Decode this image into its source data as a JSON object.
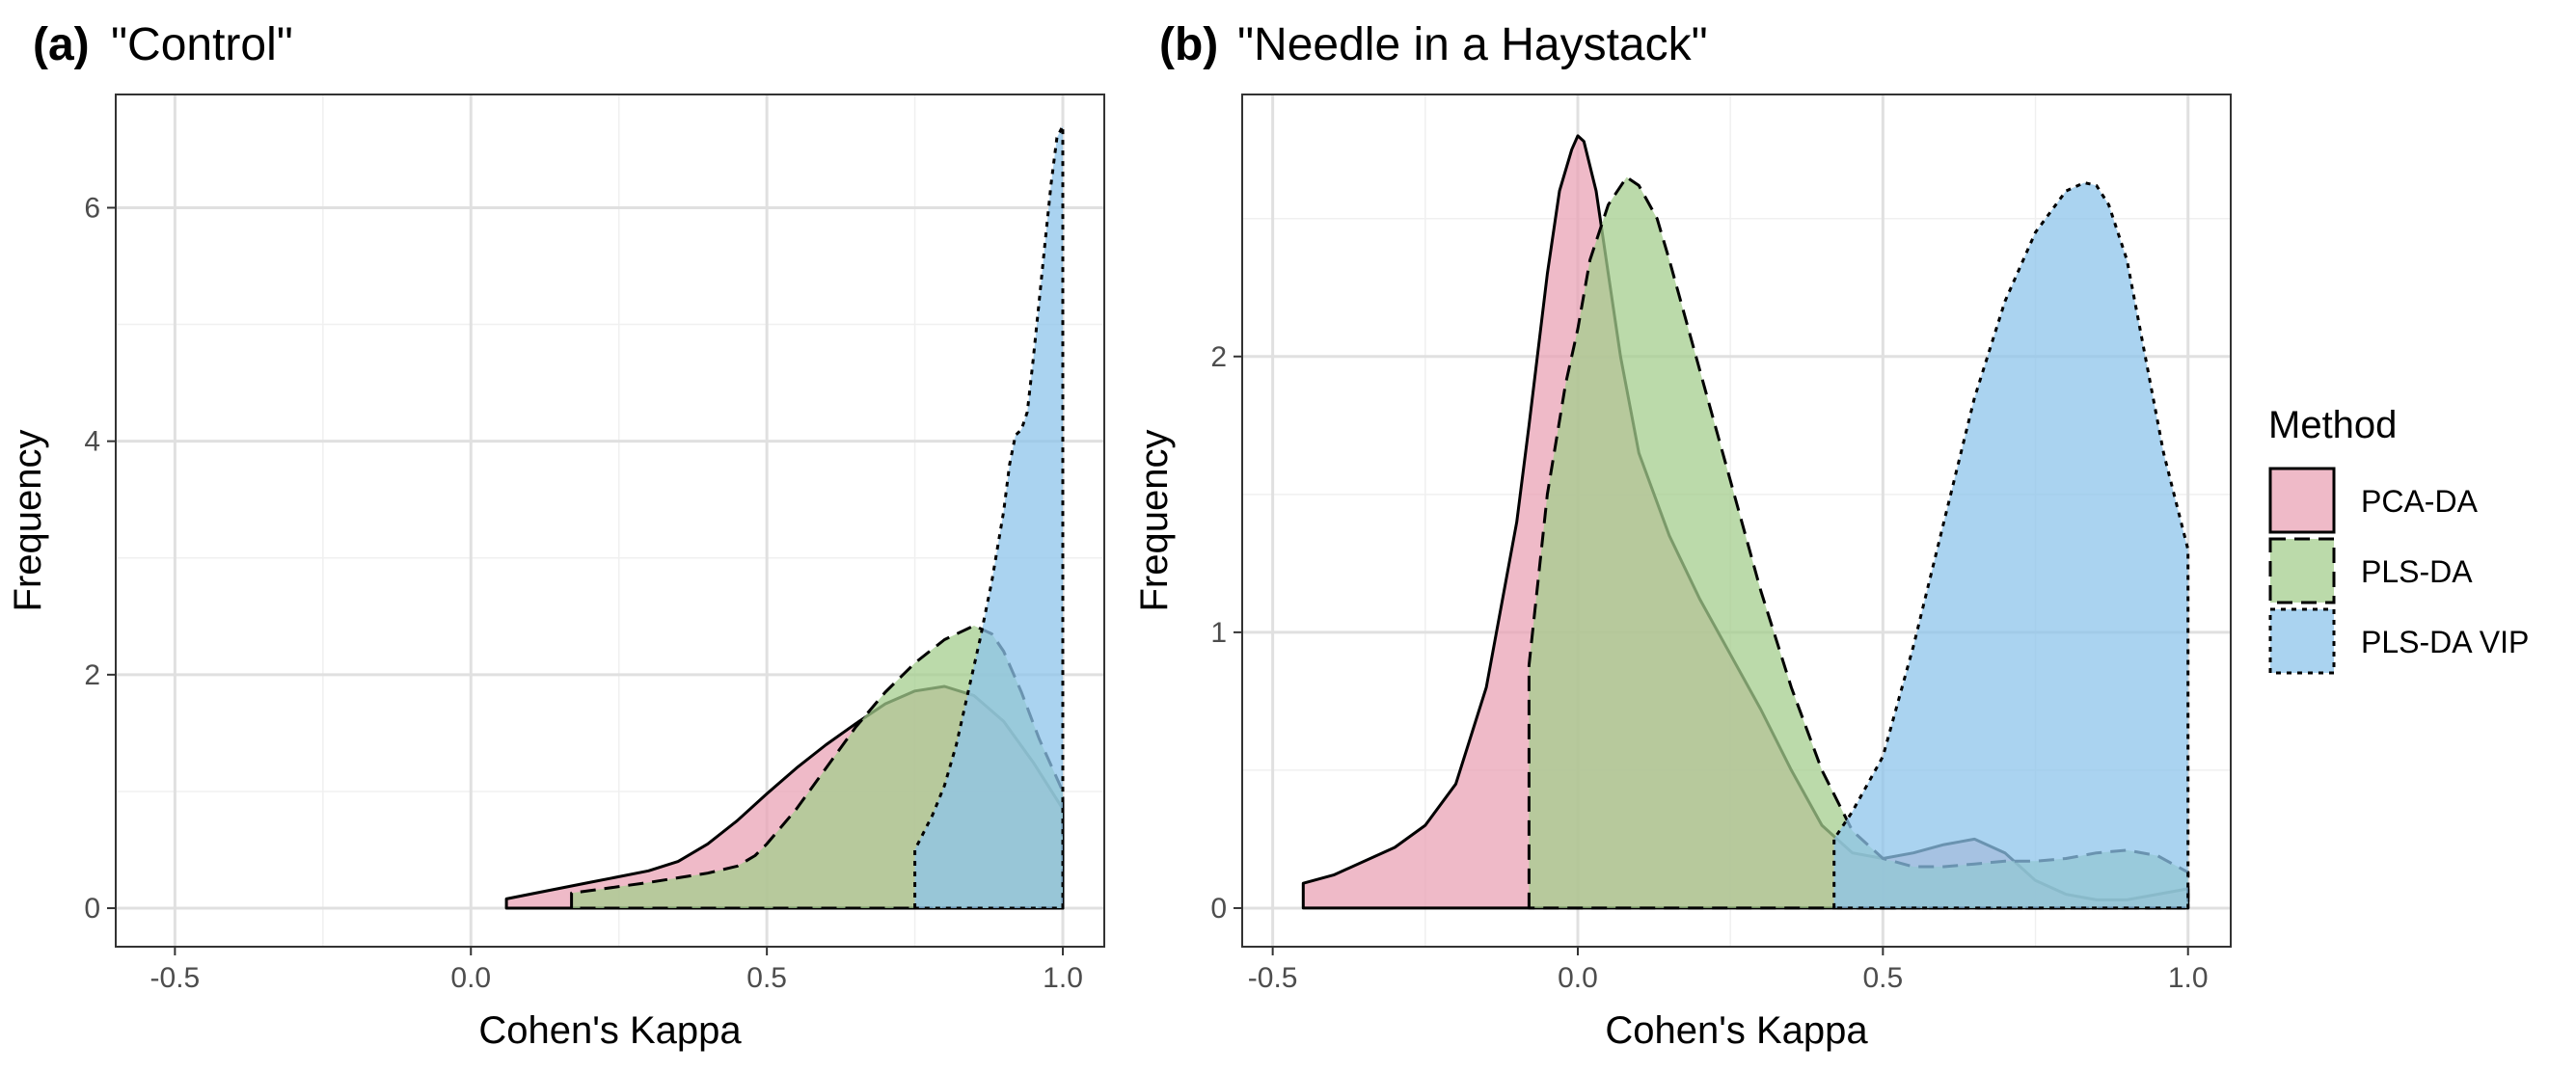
{
  "chart_data": [
    {
      "type": "area",
      "panel_tag": "(a)",
      "title": "\"Control\"",
      "xlabel": "Cohen's Kappa",
      "ylabel": "Frequency",
      "xlim": [
        -0.6,
        1.07
      ],
      "ylim": [
        -0.33,
        6.97
      ],
      "x_ticks": [
        -0.5,
        0.0,
        0.5,
        1.0
      ],
      "x_tick_labels": [
        "-0.5",
        "0.0",
        "0.5",
        "1.0"
      ],
      "y_ticks": [
        0,
        2,
        4,
        6
      ],
      "y_tick_labels": [
        "0",
        "2",
        "4",
        "6"
      ],
      "grid": true,
      "series": [
        {
          "name": "PCA-DA",
          "x": [
            0.06,
            0.1,
            0.2,
            0.3,
            0.35,
            0.4,
            0.45,
            0.5,
            0.55,
            0.6,
            0.65,
            0.7,
            0.75,
            0.8,
            0.85,
            0.9,
            0.95,
            1.0
          ],
          "y": [
            0.08,
            0.12,
            0.22,
            0.32,
            0.4,
            0.55,
            0.75,
            0.98,
            1.2,
            1.4,
            1.58,
            1.75,
            1.86,
            1.9,
            1.82,
            1.6,
            1.25,
            0.85
          ]
        },
        {
          "name": "PLS-DA",
          "x": [
            0.17,
            0.2,
            0.3,
            0.4,
            0.45,
            0.48,
            0.5,
            0.55,
            0.6,
            0.65,
            0.7,
            0.75,
            0.8,
            0.85,
            0.88,
            0.9,
            0.93,
            0.96,
            1.0
          ],
          "y": [
            0.13,
            0.15,
            0.22,
            0.3,
            0.36,
            0.45,
            0.55,
            0.85,
            1.2,
            1.55,
            1.85,
            2.1,
            2.3,
            2.42,
            2.35,
            2.2,
            1.85,
            1.45,
            1.0
          ]
        },
        {
          "name": "PLS-DA VIP",
          "x": [
            0.75,
            0.75,
            0.78,
            0.8,
            0.82,
            0.84,
            0.86,
            0.88,
            0.9,
            0.91,
            0.92,
            0.93,
            0.94,
            0.95,
            0.96,
            0.97,
            0.98,
            0.99,
            1.0,
            1.0
          ],
          "y": [
            0.0,
            0.5,
            0.8,
            1.05,
            1.4,
            1.85,
            2.3,
            2.8,
            3.4,
            3.8,
            4.05,
            4.1,
            4.25,
            4.7,
            5.2,
            5.7,
            6.2,
            6.6,
            6.7,
            0.0
          ]
        }
      ]
    },
    {
      "type": "area",
      "panel_tag": "(b)",
      "title": "\"Needle in a Haystack\"",
      "xlabel": "Cohen's Kappa",
      "ylabel": "Frequency",
      "xlim": [
        -0.55,
        1.07
      ],
      "ylim": [
        -0.14,
        2.95
      ],
      "x_ticks": [
        -0.5,
        0.0,
        0.5,
        1.0
      ],
      "x_tick_labels": [
        "-0.5",
        "0.0",
        "0.5",
        "1.0"
      ],
      "y_ticks": [
        0,
        1,
        2
      ],
      "y_tick_labels": [
        "0",
        "1",
        "2"
      ],
      "grid": true,
      "series": [
        {
          "name": "PCA-DA",
          "x": [
            -0.45,
            -0.4,
            -0.3,
            -0.25,
            -0.2,
            -0.15,
            -0.1,
            -0.08,
            -0.05,
            -0.03,
            -0.01,
            0.0,
            0.01,
            0.03,
            0.05,
            0.07,
            0.1,
            0.15,
            0.2,
            0.25,
            0.3,
            0.35,
            0.4,
            0.45,
            0.5,
            0.55,
            0.6,
            0.65,
            0.7,
            0.75,
            0.8,
            0.85,
            0.9,
            0.95,
            1.0
          ],
          "y": [
            0.09,
            0.12,
            0.22,
            0.3,
            0.45,
            0.8,
            1.4,
            1.75,
            2.3,
            2.6,
            2.75,
            2.8,
            2.78,
            2.6,
            2.3,
            2.0,
            1.65,
            1.35,
            1.12,
            0.92,
            0.72,
            0.5,
            0.3,
            0.2,
            0.18,
            0.2,
            0.23,
            0.25,
            0.2,
            0.1,
            0.05,
            0.03,
            0.03,
            0.05,
            0.07
          ]
        },
        {
          "name": "PLS-DA",
          "x": [
            -0.08,
            -0.08,
            -0.05,
            -0.02,
            0.0,
            0.02,
            0.05,
            0.08,
            0.1,
            0.13,
            0.15,
            0.2,
            0.25,
            0.3,
            0.35,
            0.4,
            0.45,
            0.5,
            0.55,
            0.6,
            0.65,
            0.7,
            0.75,
            0.8,
            0.85,
            0.9,
            0.95,
            1.0,
            1.0
          ],
          "y": [
            0.0,
            0.88,
            1.5,
            1.9,
            2.1,
            2.35,
            2.55,
            2.65,
            2.62,
            2.5,
            2.35,
            1.95,
            1.55,
            1.15,
            0.8,
            0.5,
            0.28,
            0.18,
            0.15,
            0.15,
            0.16,
            0.17,
            0.17,
            0.18,
            0.2,
            0.21,
            0.19,
            0.13,
            0.0
          ]
        },
        {
          "name": "PLS-DA VIP",
          "x": [
            0.42,
            0.42,
            0.45,
            0.5,
            0.55,
            0.6,
            0.65,
            0.7,
            0.75,
            0.8,
            0.83,
            0.85,
            0.87,
            0.9,
            0.93,
            0.96,
            1.0,
            1.0
          ],
          "y": [
            0.0,
            0.25,
            0.35,
            0.55,
            0.95,
            1.4,
            1.85,
            2.2,
            2.45,
            2.6,
            2.63,
            2.62,
            2.55,
            2.35,
            2.0,
            1.65,
            1.3,
            0.0
          ]
        }
      ]
    }
  ],
  "legend": {
    "title": "Method",
    "entries": [
      {
        "label": "PCA-DA",
        "color": "#e9a3b5",
        "line": "solid"
      },
      {
        "label": "PLS-DA",
        "color": "#a4cd8e",
        "line": "dashed"
      },
      {
        "label": "PLS-DA VIP",
        "color": "#8ec4eb",
        "line": "dotted"
      }
    ]
  },
  "colors": {
    "PCA-DA": "#e9a3b5",
    "PLS-DA": "#a4cd8e",
    "PLS-DA VIP": "#8ec4eb"
  }
}
